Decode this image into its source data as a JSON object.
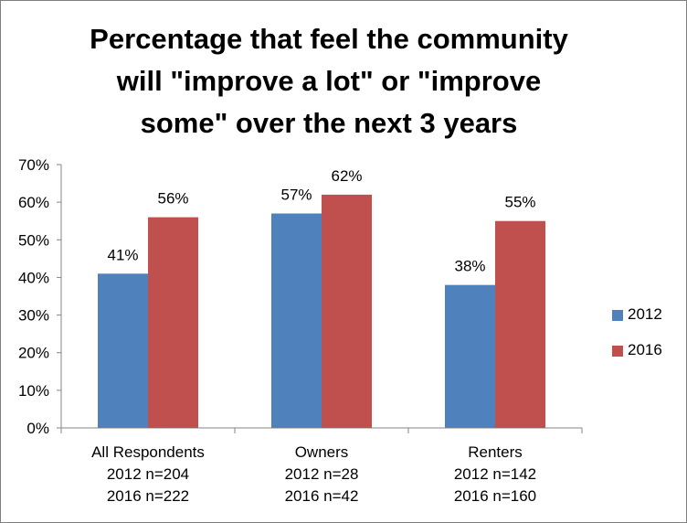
{
  "chart_data": {
    "type": "bar",
    "title_lines": [
      "Percentage that feel the community",
      "will \"improve a lot\" or \"improve",
      "some\" over the next 3 years"
    ],
    "categories": [
      [
        "All Respondents",
        "2012 n=204",
        "2016 n=222"
      ],
      [
        "Owners",
        "2012 n=28",
        "2016 n=42"
      ],
      [
        "Renters",
        "2012 n=142",
        "2016 n=160"
      ]
    ],
    "series": [
      {
        "name": "2012",
        "color": "#4F81BD",
        "values": [
          41,
          57,
          38
        ],
        "labels": [
          "41%",
          "57%",
          "38%"
        ]
      },
      {
        "name": "2016",
        "color": "#C0504D",
        "values": [
          56,
          62,
          55
        ],
        "labels": [
          "56%",
          "62%",
          "55%"
        ]
      }
    ],
    "ylim": [
      0,
      70
    ],
    "yticks": [
      0,
      10,
      20,
      30,
      40,
      50,
      60,
      70
    ],
    "ytick_labels": [
      "0%",
      "10%",
      "20%",
      "30%",
      "40%",
      "50%",
      "60%",
      "70%"
    ],
    "xlabel": "",
    "ylabel": "",
    "grid": false,
    "legend_position": "right"
  }
}
